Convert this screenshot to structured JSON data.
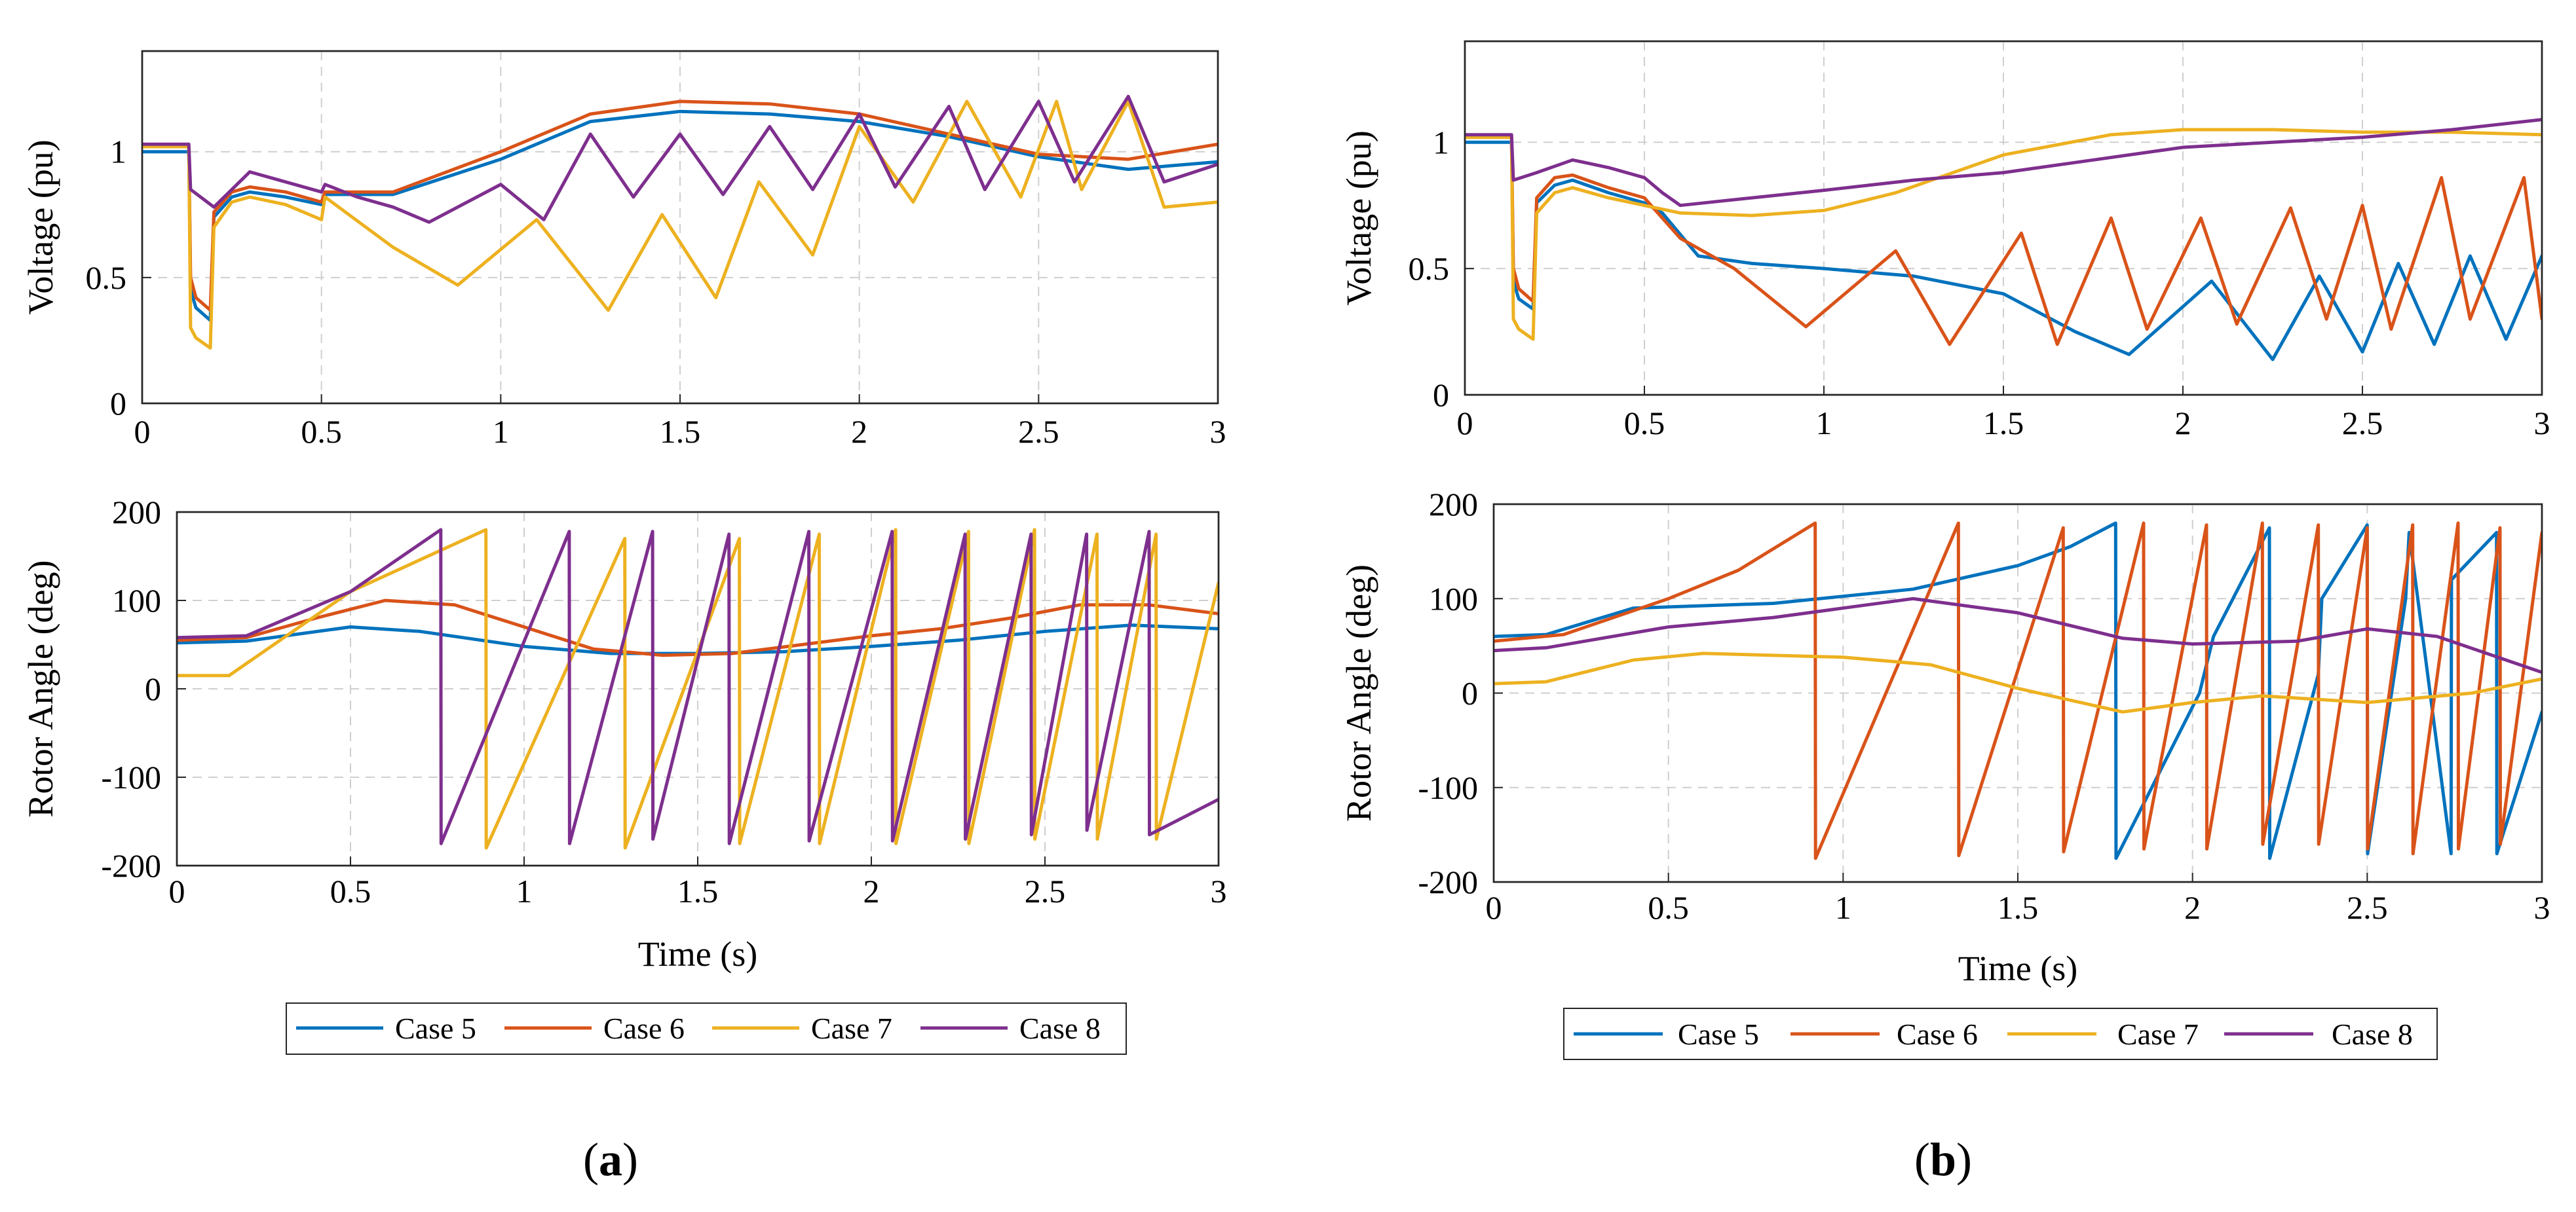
{
  "colors": {
    "case5": "#0072BD",
    "case6": "#D95319",
    "case7": "#EDB120",
    "case8": "#7E2F8E"
  },
  "legend": [
    "Case 5",
    "Case 6",
    "Case 7",
    "Case 8"
  ],
  "panel_labels": {
    "a": {
      "open": "(",
      "letter": "a",
      "close": ")"
    },
    "b": {
      "open": "(",
      "letter": "b",
      "close": ")"
    }
  },
  "chart_data": [
    {
      "id": "a-voltage",
      "type": "line",
      "panel": "a",
      "xlabel": "",
      "ylabel": "Voltage (pu)",
      "xlim": [
        0,
        3
      ],
      "ylim": [
        0,
        1.4
      ],
      "xticks": [
        "0",
        "0.5",
        "1",
        "1.5",
        "2",
        "2.5",
        "3"
      ],
      "yticks": [
        "0",
        "0.5",
        "1"
      ],
      "grid": true,
      "series": [
        {
          "name": "Case 5",
          "color": "#0072BD",
          "x": [
            0,
            0.13,
            0.135,
            0.15,
            0.19,
            0.2,
            0.25,
            0.3,
            0.4,
            0.5,
            0.51,
            0.7,
            1,
            1.25,
            1.5,
            1.75,
            2,
            2.25,
            2.5,
            2.75,
            3
          ],
          "y": [
            1.0,
            1.0,
            0.45,
            0.38,
            0.33,
            0.74,
            0.82,
            0.84,
            0.82,
            0.79,
            0.83,
            0.83,
            0.97,
            1.12,
            1.16,
            1.15,
            1.12,
            1.06,
            0.98,
            0.93,
            0.96
          ]
        },
        {
          "name": "Case 6",
          "color": "#D95319",
          "x": [
            0,
            0.13,
            0.135,
            0.15,
            0.19,
            0.2,
            0.25,
            0.3,
            0.4,
            0.5,
            0.51,
            0.7,
            1,
            1.25,
            1.5,
            1.75,
            2,
            2.25,
            2.5,
            2.75,
            3
          ],
          "y": [
            1.02,
            1.02,
            0.5,
            0.42,
            0.37,
            0.76,
            0.84,
            0.86,
            0.84,
            0.8,
            0.84,
            0.84,
            1.0,
            1.15,
            1.2,
            1.19,
            1.15,
            1.07,
            0.99,
            0.97,
            1.03
          ]
        },
        {
          "name": "Case 7",
          "color": "#EDB120",
          "x": [
            0,
            0.13,
            0.135,
            0.15,
            0.19,
            0.2,
            0.25,
            0.3,
            0.4,
            0.5,
            0.51,
            0.7,
            0.88,
            1.1,
            1.3,
            1.45,
            1.6,
            1.72,
            1.87,
            2.0,
            2.15,
            2.3,
            2.45,
            2.55,
            2.62,
            2.75,
            2.85,
            3
          ],
          "y": [
            1.02,
            1.02,
            0.3,
            0.26,
            0.22,
            0.7,
            0.8,
            0.82,
            0.79,
            0.73,
            0.82,
            0.62,
            0.47,
            0.73,
            0.37,
            0.75,
            0.42,
            0.88,
            0.59,
            1.1,
            0.8,
            1.2,
            0.82,
            1.2,
            0.85,
            1.2,
            0.78,
            0.8
          ]
        },
        {
          "name": "Case 8",
          "color": "#7E2F8E",
          "x": [
            0,
            0.13,
            0.135,
            0.2,
            0.3,
            0.4,
            0.5,
            0.51,
            0.6,
            0.7,
            0.8,
            1.0,
            1.12,
            1.25,
            1.37,
            1.5,
            1.62,
            1.75,
            1.87,
            2.0,
            2.1,
            2.25,
            2.35,
            2.5,
            2.6,
            2.75,
            2.85,
            3
          ],
          "y": [
            1.03,
            1.03,
            0.85,
            0.78,
            0.92,
            0.88,
            0.84,
            0.87,
            0.82,
            0.78,
            0.72,
            0.87,
            0.73,
            1.07,
            0.82,
            1.07,
            0.83,
            1.1,
            0.85,
            1.15,
            0.86,
            1.18,
            0.85,
            1.2,
            0.88,
            1.22,
            0.88,
            0.95
          ]
        }
      ]
    },
    {
      "id": "a-angle",
      "type": "line",
      "panel": "a",
      "xlabel": "Time (s)",
      "ylabel": "Rotor Angle (deg)",
      "xlim": [
        0,
        3
      ],
      "ylim": [
        -200,
        200
      ],
      "xticks": [
        "0",
        "0.5",
        "1",
        "1.5",
        "2",
        "2.5",
        "3"
      ],
      "yticks": [
        "200",
        "100",
        "0",
        "-100",
        "-200"
      ],
      "grid": true,
      "series": [
        {
          "name": "Case 5",
          "color": "#0072BD",
          "x": [
            0,
            0.2,
            0.5,
            0.7,
            1,
            1.25,
            1.5,
            1.75,
            2,
            2.25,
            2.5,
            2.75,
            3
          ],
          "y": [
            52,
            54,
            70,
            65,
            48,
            40,
            40,
            42,
            48,
            55,
            65,
            72,
            68
          ]
        },
        {
          "name": "Case 6",
          "color": "#D95319",
          "x": [
            0,
            0.2,
            0.4,
            0.6,
            0.8,
            1,
            1.2,
            1.4,
            1.6,
            1.8,
            2,
            2.2,
            2.4,
            2.6,
            2.8,
            3
          ],
          "y": [
            55,
            58,
            80,
            100,
            95,
            70,
            45,
            38,
            40,
            50,
            60,
            68,
            80,
            95,
            95,
            85
          ]
        },
        {
          "name": "Case 7",
          "color": "#EDB120",
          "x": [
            0,
            0.15,
            0.5,
            0.89,
            0.891,
            1.29,
            1.291,
            1.62,
            1.621,
            1.85,
            1.851,
            2.07,
            2.071,
            2.28,
            2.281,
            2.47,
            2.471,
            2.65,
            2.651,
            2.82,
            2.821,
            3
          ],
          "y": [
            15,
            15,
            110,
            180,
            -180,
            170,
            -180,
            170,
            -175,
            175,
            -175,
            180,
            -175,
            178,
            -175,
            180,
            -170,
            175,
            -170,
            175,
            -170,
            120
          ]
        },
        {
          "name": "Case 8",
          "color": "#7E2F8E",
          "x": [
            0,
            0.2,
            0.5,
            0.76,
            0.761,
            1.13,
            1.131,
            1.37,
            1.371,
            1.59,
            1.591,
            1.82,
            1.821,
            2.06,
            2.061,
            2.27,
            2.271,
            2.46,
            2.461,
            2.62,
            2.621,
            2.8,
            2.801,
            3
          ],
          "y": [
            58,
            60,
            110,
            180,
            -175,
            178,
            -175,
            178,
            -170,
            175,
            -175,
            178,
            -172,
            178,
            -172,
            175,
            -170,
            175,
            -165,
            175,
            -160,
            178,
            -165,
            -125
          ]
        }
      ]
    },
    {
      "id": "b-voltage",
      "type": "line",
      "panel": "b",
      "xlabel": "",
      "ylabel": "Voltage (pu)",
      "xlim": [
        0,
        3
      ],
      "ylim": [
        0,
        1.4
      ],
      "xticks": [
        "0",
        "0.5",
        "1",
        "1.5",
        "2",
        "2.5",
        "3"
      ],
      "yticks": [
        "0",
        "0.5",
        "1"
      ],
      "grid": true,
      "series": [
        {
          "name": "Case 5",
          "color": "#0072BD",
          "x": [
            0,
            0.13,
            0.135,
            0.15,
            0.19,
            0.2,
            0.25,
            0.3,
            0.4,
            0.5,
            0.55,
            0.65,
            0.8,
            1,
            1.25,
            1.5,
            1.7,
            1.85,
            2.08,
            2.25,
            2.38,
            2.5,
            2.6,
            2.7,
            2.8,
            2.9,
            3
          ],
          "y": [
            1.0,
            1.0,
            0.45,
            0.38,
            0.34,
            0.76,
            0.83,
            0.85,
            0.8,
            0.76,
            0.72,
            0.55,
            0.52,
            0.5,
            0.47,
            0.4,
            0.25,
            0.16,
            0.45,
            0.14,
            0.47,
            0.17,
            0.52,
            0.2,
            0.55,
            0.22,
            0.55
          ]
        },
        {
          "name": "Case 6",
          "color": "#D95319",
          "x": [
            0,
            0.13,
            0.135,
            0.15,
            0.19,
            0.2,
            0.25,
            0.3,
            0.4,
            0.5,
            0.6,
            0.75,
            0.95,
            1.2,
            1.35,
            1.55,
            1.65,
            1.8,
            1.9,
            2.05,
            2.15,
            2.3,
            2.4,
            2.5,
            2.58,
            2.72,
            2.8,
            2.95,
            3
          ],
          "y": [
            1.02,
            1.02,
            0.5,
            0.42,
            0.37,
            0.78,
            0.86,
            0.87,
            0.82,
            0.78,
            0.62,
            0.5,
            0.27,
            0.57,
            0.2,
            0.64,
            0.2,
            0.7,
            0.26,
            0.7,
            0.28,
            0.74,
            0.3,
            0.75,
            0.26,
            0.86,
            0.3,
            0.86,
            0.3
          ]
        },
        {
          "name": "Case 7",
          "color": "#EDB120",
          "x": [
            0,
            0.13,
            0.135,
            0.15,
            0.19,
            0.2,
            0.25,
            0.3,
            0.4,
            0.5,
            0.6,
            0.8,
            1.0,
            1.2,
            1.5,
            1.8,
            2.0,
            2.25,
            2.5,
            2.75,
            3
          ],
          "y": [
            1.02,
            1.02,
            0.3,
            0.26,
            0.22,
            0.72,
            0.8,
            0.82,
            0.78,
            0.75,
            0.72,
            0.71,
            0.73,
            0.8,
            0.95,
            1.03,
            1.05,
            1.05,
            1.04,
            1.04,
            1.03
          ]
        },
        {
          "name": "Case 8",
          "color": "#7E2F8E",
          "x": [
            0,
            0.13,
            0.135,
            0.2,
            0.3,
            0.4,
            0.5,
            0.55,
            0.6,
            0.8,
            1.0,
            1.25,
            1.5,
            1.75,
            2.0,
            2.25,
            2.5,
            2.75,
            3
          ],
          "y": [
            1.03,
            1.03,
            0.85,
            0.88,
            0.93,
            0.9,
            0.86,
            0.8,
            0.75,
            0.78,
            0.81,
            0.85,
            0.88,
            0.93,
            0.98,
            1.0,
            1.02,
            1.05,
            1.09
          ]
        }
      ]
    },
    {
      "id": "b-angle",
      "type": "line",
      "panel": "b",
      "xlabel": "Time (s)",
      "ylabel": "Rotor Angle (deg)",
      "xlim": [
        0,
        3
      ],
      "ylim": [
        -200,
        200
      ],
      "xticks": [
        "0",
        "0.5",
        "1",
        "1.5",
        "2",
        "2.5",
        "3"
      ],
      "yticks": [
        "200",
        "100",
        "0",
        "-100",
        "-200"
      ],
      "grid": true,
      "series": [
        {
          "name": "Case 5",
          "color": "#0072BD",
          "x": [
            0,
            0.15,
            0.4,
            0.8,
            1.2,
            1.5,
            1.65,
            1.78,
            1.781,
            2.02,
            2.06,
            2.22,
            2.221,
            2.36,
            2.37,
            2.5,
            2.501,
            2.61,
            2.62,
            2.74,
            2.741,
            2.87,
            2.871,
            3
          ],
          "y": [
            60,
            62,
            90,
            95,
            110,
            135,
            155,
            180,
            -175,
            0,
            60,
            175,
            -175,
            20,
            100,
            178,
            -170,
            100,
            170,
            -170,
            120,
            170,
            -170,
            -20
          ]
        },
        {
          "name": "Case 6",
          "color": "#D95319",
          "x": [
            0,
            0.2,
            0.5,
            0.7,
            0.92,
            0.921,
            1.33,
            1.331,
            1.63,
            1.631,
            1.86,
            1.861,
            2.04,
            2.041,
            2.2,
            2.201,
            2.36,
            2.361,
            2.5,
            2.501,
            2.63,
            2.631,
            2.76,
            2.761,
            2.88,
            2.881,
            3,
            3.0
          ],
          "y": [
            55,
            62,
            100,
            130,
            180,
            -175,
            180,
            -172,
            175,
            -168,
            180,
            -165,
            178,
            -165,
            180,
            -160,
            178,
            -160,
            175,
            -165,
            178,
            -170,
            180,
            -165,
            175,
            -160,
            170,
            170
          ]
        },
        {
          "name": "Case 7",
          "color": "#EDB120",
          "x": [
            0,
            0.15,
            0.4,
            0.6,
            1.0,
            1.25,
            1.5,
            1.8,
            2.0,
            2.2,
            2.5,
            2.8,
            3
          ],
          "y": [
            10,
            12,
            35,
            42,
            38,
            30,
            5,
            -20,
            -10,
            -3,
            -10,
            0,
            15
          ]
        },
        {
          "name": "Case 8",
          "color": "#7E2F8E",
          "x": [
            0,
            0.15,
            0.5,
            0.8,
            1.0,
            1.2,
            1.5,
            1.8,
            2.0,
            2.3,
            2.5,
            2.7,
            3
          ],
          "y": [
            45,
            48,
            70,
            80,
            90,
            100,
            85,
            58,
            52,
            55,
            68,
            60,
            22
          ]
        }
      ]
    }
  ]
}
